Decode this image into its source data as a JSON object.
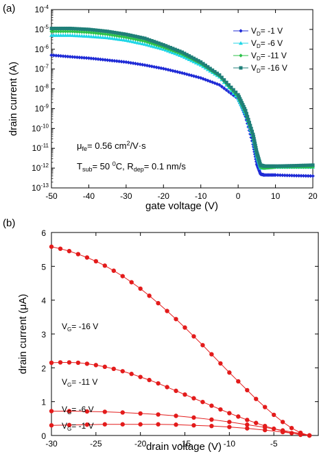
{
  "chart_data": [
    {
      "id": "a",
      "panel_label": "(a)",
      "type": "scatter",
      "xlabel": "gate voltage (V)",
      "ylabel": "drain current (A)",
      "xlim": [
        -50,
        20
      ],
      "ylim_log10": [
        -13,
        -4
      ],
      "yscale": "log",
      "x_ticks": [
        -50,
        -40,
        -30,
        -20,
        -10,
        0,
        10,
        20
      ],
      "y_tick_exponents": [
        -4,
        -5,
        -6,
        -7,
        -8,
        -9,
        -10,
        -11,
        -12,
        -13
      ],
      "y_tick_base": "10",
      "legend_position": "top-right",
      "annotations": [
        {
          "main": "μ",
          "sub": "fe",
          "rest": "= 0.56 cm",
          "sup": "2",
          "tail": "/V·s"
        },
        {
          "main": "T",
          "sub": "sub",
          "rest": "= 50 ",
          "sup": "0",
          "tail": "C, R",
          "sub2": "dep",
          "tail2": "= 0.1 nm/s"
        }
      ],
      "series": [
        {
          "name": "V",
          "name_sub": "D",
          "name_rest": "= -1 V",
          "color": "#1f2bd6",
          "marker": "diamond",
          "x": [
            -50,
            -45,
            -40,
            -35,
            -30,
            -25,
            -20,
            -15,
            -10,
            -5,
            0,
            2,
            4,
            5,
            6,
            7,
            10,
            15,
            20
          ],
          "log10_y": [
            -6.3,
            -6.38,
            -6.45,
            -6.55,
            -6.65,
            -6.8,
            -6.98,
            -7.2,
            -7.45,
            -7.8,
            -8.5,
            -9.4,
            -10.8,
            -11.8,
            -12.3,
            -12.35,
            -12.35,
            -12.38,
            -12.4
          ]
        },
        {
          "name": "V",
          "name_sub": "D",
          "name_rest": "= -6 V",
          "color": "#1fd6e6",
          "marker": "triangle",
          "x": [
            -50,
            -45,
            -40,
            -35,
            -30,
            -25,
            -20,
            -15,
            -10,
            -5,
            0,
            2,
            4,
            5,
            6,
            7,
            10,
            15,
            20
          ],
          "log10_y": [
            -5.3,
            -5.3,
            -5.35,
            -5.42,
            -5.55,
            -5.75,
            -6.0,
            -6.35,
            -6.8,
            -7.4,
            -8.5,
            -9.3,
            -10.5,
            -11.4,
            -12.0,
            -12.0,
            -11.95,
            -11.95,
            -11.95
          ]
        },
        {
          "name": "V",
          "name_sub": "D",
          "name_rest": "= -11 V",
          "color": "#2ec24a",
          "marker": "diamond",
          "x": [
            -50,
            -45,
            -40,
            -35,
            -30,
            -25,
            -20,
            -15,
            -10,
            -5,
            0,
            2,
            4,
            5,
            6,
            7,
            10,
            15,
            20
          ],
          "log10_y": [
            -5.1,
            -5.1,
            -5.15,
            -5.25,
            -5.4,
            -5.6,
            -5.9,
            -6.25,
            -6.72,
            -7.35,
            -8.4,
            -9.2,
            -10.4,
            -11.3,
            -11.95,
            -12.0,
            -11.95,
            -11.95,
            -11.95
          ]
        },
        {
          "name": "V",
          "name_sub": "D",
          "name_rest": "= -16 V",
          "color": "#1f7f78",
          "marker": "square",
          "x": [
            -50,
            -45,
            -40,
            -35,
            -30,
            -25,
            -20,
            -15,
            -10,
            -5,
            0,
            2,
            4,
            5,
            6,
            7,
            10,
            15,
            20
          ],
          "log10_y": [
            -4.95,
            -4.95,
            -5.0,
            -5.1,
            -5.25,
            -5.45,
            -5.78,
            -6.15,
            -6.65,
            -7.3,
            -8.3,
            -9.1,
            -10.3,
            -11.2,
            -11.85,
            -11.9,
            -11.9,
            -11.88,
            -11.85
          ]
        }
      ]
    },
    {
      "id": "b",
      "panel_label": "(b)",
      "type": "line",
      "xlabel": "drain voltage (V)",
      "ylabel": "drain current (μA)",
      "xlim": [
        -30,
        0
      ],
      "ylim": [
        0,
        6
      ],
      "x_ticks": [
        -30,
        -25,
        -20,
        -15,
        -10,
        -5
      ],
      "y_ticks": [
        0,
        1,
        2,
        3,
        4,
        5,
        6
      ],
      "color": "#e31b1b",
      "series": [
        {
          "name": "V",
          "name_sub": "G",
          "name_rest": "= -16 V",
          "x": [
            -30,
            -29,
            -28,
            -27,
            -26,
            -25,
            -24,
            -23,
            -22,
            -21,
            -20,
            -19,
            -18,
            -17,
            -16,
            -15,
            -14,
            -13,
            -12,
            -11,
            -10,
            -9,
            -8,
            -7,
            -6,
            -5,
            -4,
            -3,
            -2,
            -1
          ],
          "y": [
            5.58,
            5.52,
            5.45,
            5.36,
            5.26,
            5.15,
            5.02,
            4.87,
            4.71,
            4.53,
            4.34,
            4.13,
            3.91,
            3.68,
            3.44,
            3.19,
            2.93,
            2.67,
            2.4,
            2.13,
            1.86,
            1.6,
            1.34,
            1.08,
            0.84,
            0.61,
            0.4,
            0.22,
            0.08,
            0.0
          ]
        },
        {
          "name": "V",
          "name_sub": "G",
          "name_rest": "= -11 V",
          "x": [
            -30,
            -29,
            -28,
            -27,
            -26,
            -25,
            -24,
            -23,
            -22,
            -21,
            -20,
            -19,
            -18,
            -17,
            -16,
            -15,
            -14,
            -13,
            -12,
            -11,
            -10,
            -9,
            -8,
            -7,
            -6,
            -5,
            -4,
            -3,
            -2,
            -1
          ],
          "y": [
            2.15,
            2.16,
            2.16,
            2.15,
            2.12,
            2.08,
            2.03,
            1.97,
            1.9,
            1.82,
            1.73,
            1.64,
            1.54,
            1.43,
            1.32,
            1.21,
            1.1,
            0.99,
            0.88,
            0.77,
            0.66,
            0.56,
            0.46,
            0.37,
            0.28,
            0.2,
            0.13,
            0.07,
            0.02,
            0.0
          ]
        },
        {
          "name": "V",
          "name_sub": "G",
          "name_rest": "= -6 V",
          "x": [
            -30,
            -28,
            -26,
            -24,
            -22,
            -20,
            -18,
            -16,
            -14,
            -12,
            -10,
            -8,
            -6,
            -4,
            -2,
            -1
          ],
          "y": [
            0.72,
            0.72,
            0.71,
            0.7,
            0.68,
            0.65,
            0.62,
            0.58,
            0.53,
            0.47,
            0.4,
            0.32,
            0.24,
            0.15,
            0.06,
            0.0
          ]
        },
        {
          "name": "V",
          "name_sub": "G",
          "name_rest": "= -1 V",
          "x": [
            -30,
            -28,
            -26,
            -24,
            -22,
            -20,
            -18,
            -16,
            -14,
            -12,
            -10,
            -8,
            -6,
            -4,
            -2,
            -1
          ],
          "y": [
            0.3,
            0.31,
            0.32,
            0.33,
            0.33,
            0.33,
            0.33,
            0.32,
            0.3,
            0.28,
            0.25,
            0.21,
            0.16,
            0.1,
            0.04,
            0.0
          ]
        }
      ]
    }
  ]
}
